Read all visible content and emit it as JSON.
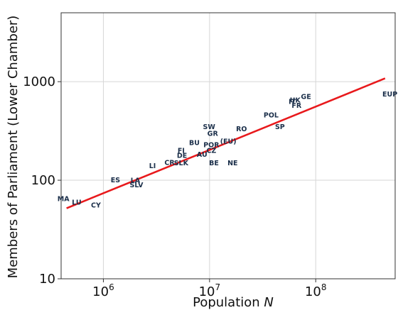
{
  "chart_data": {
    "type": "scatter",
    "xlabel": "Population",
    "xlabel_var": "N",
    "ylabel": "Members of Parliament (Lower Chamber)",
    "x_scale": "log",
    "y_scale": "log",
    "xlim": [
      400000,
      560000000
    ],
    "ylim": [
      10,
      5000
    ],
    "x_ticks": [
      {
        "value": 1000000,
        "base": "10",
        "exp": "6"
      },
      {
        "value": 10000000,
        "base": "10",
        "exp": "7"
      },
      {
        "value": 100000000,
        "base": "10",
        "exp": "8"
      }
    ],
    "y_ticks": [
      {
        "value": 10,
        "label": "10"
      },
      {
        "value": 100,
        "label": "100"
      },
      {
        "value": 1000,
        "label": "1000"
      }
    ],
    "grid": true,
    "points": [
      {
        "label": "MA",
        "x": 420000,
        "y": 65
      },
      {
        "label": "LU",
        "x": 560000,
        "y": 60
      },
      {
        "label": "CY",
        "x": 850000,
        "y": 56
      },
      {
        "label": "ES",
        "x": 1300000,
        "y": 101
      },
      {
        "label": "LA",
        "x": 2000000,
        "y": 100
      },
      {
        "label": "SLV",
        "x": 2050000,
        "y": 90
      },
      {
        "label": "LI",
        "x": 2900000,
        "y": 141
      },
      {
        "label": "CR",
        "x": 4200000,
        "y": 151
      },
      {
        "label": "SLK",
        "x": 5400000,
        "y": 150
      },
      {
        "label": "FI",
        "x": 5400000,
        "y": 200
      },
      {
        "label": "DE",
        "x": 5500000,
        "y": 179
      },
      {
        "label": "BU",
        "x": 7200000,
        "y": 240
      },
      {
        "label": "AU",
        "x": 8500000,
        "y": 183
      },
      {
        "label": "SW",
        "x": 9900000,
        "y": 349
      },
      {
        "label": "GR",
        "x": 10700000,
        "y": 300
      },
      {
        "label": "POR",
        "x": 10400000,
        "y": 230
      },
      {
        "label": "CZ",
        "x": 10400000,
        "y": 200
      },
      {
        "label": "BE",
        "x": 11000000,
        "y": 150
      },
      {
        "label": "(EU)",
        "x": 15000000,
        "y": 250
      },
      {
        "label": "NE",
        "x": 16500000,
        "y": 150
      },
      {
        "label": "RO",
        "x": 20000000,
        "y": 334
      },
      {
        "label": "POL",
        "x": 38000000,
        "y": 460
      },
      {
        "label": "SP",
        "x": 46000000,
        "y": 350
      },
      {
        "label": "IT",
        "x": 60000000,
        "y": 630
      },
      {
        "label": "UK",
        "x": 64000000,
        "y": 650
      },
      {
        "label": "FR",
        "x": 66000000,
        "y": 577
      },
      {
        "label": "GE",
        "x": 81000000,
        "y": 709
      },
      {
        "label": "EUP",
        "x": 500000000,
        "y": 751
      }
    ],
    "fit_line": {
      "x": [
        450000,
        450000000
      ],
      "y": [
        52,
        1080
      ]
    },
    "colors": {
      "fit_line": "#e8191c",
      "point_label": "#1b2f4a",
      "grid": "#d6d6d6"
    }
  }
}
